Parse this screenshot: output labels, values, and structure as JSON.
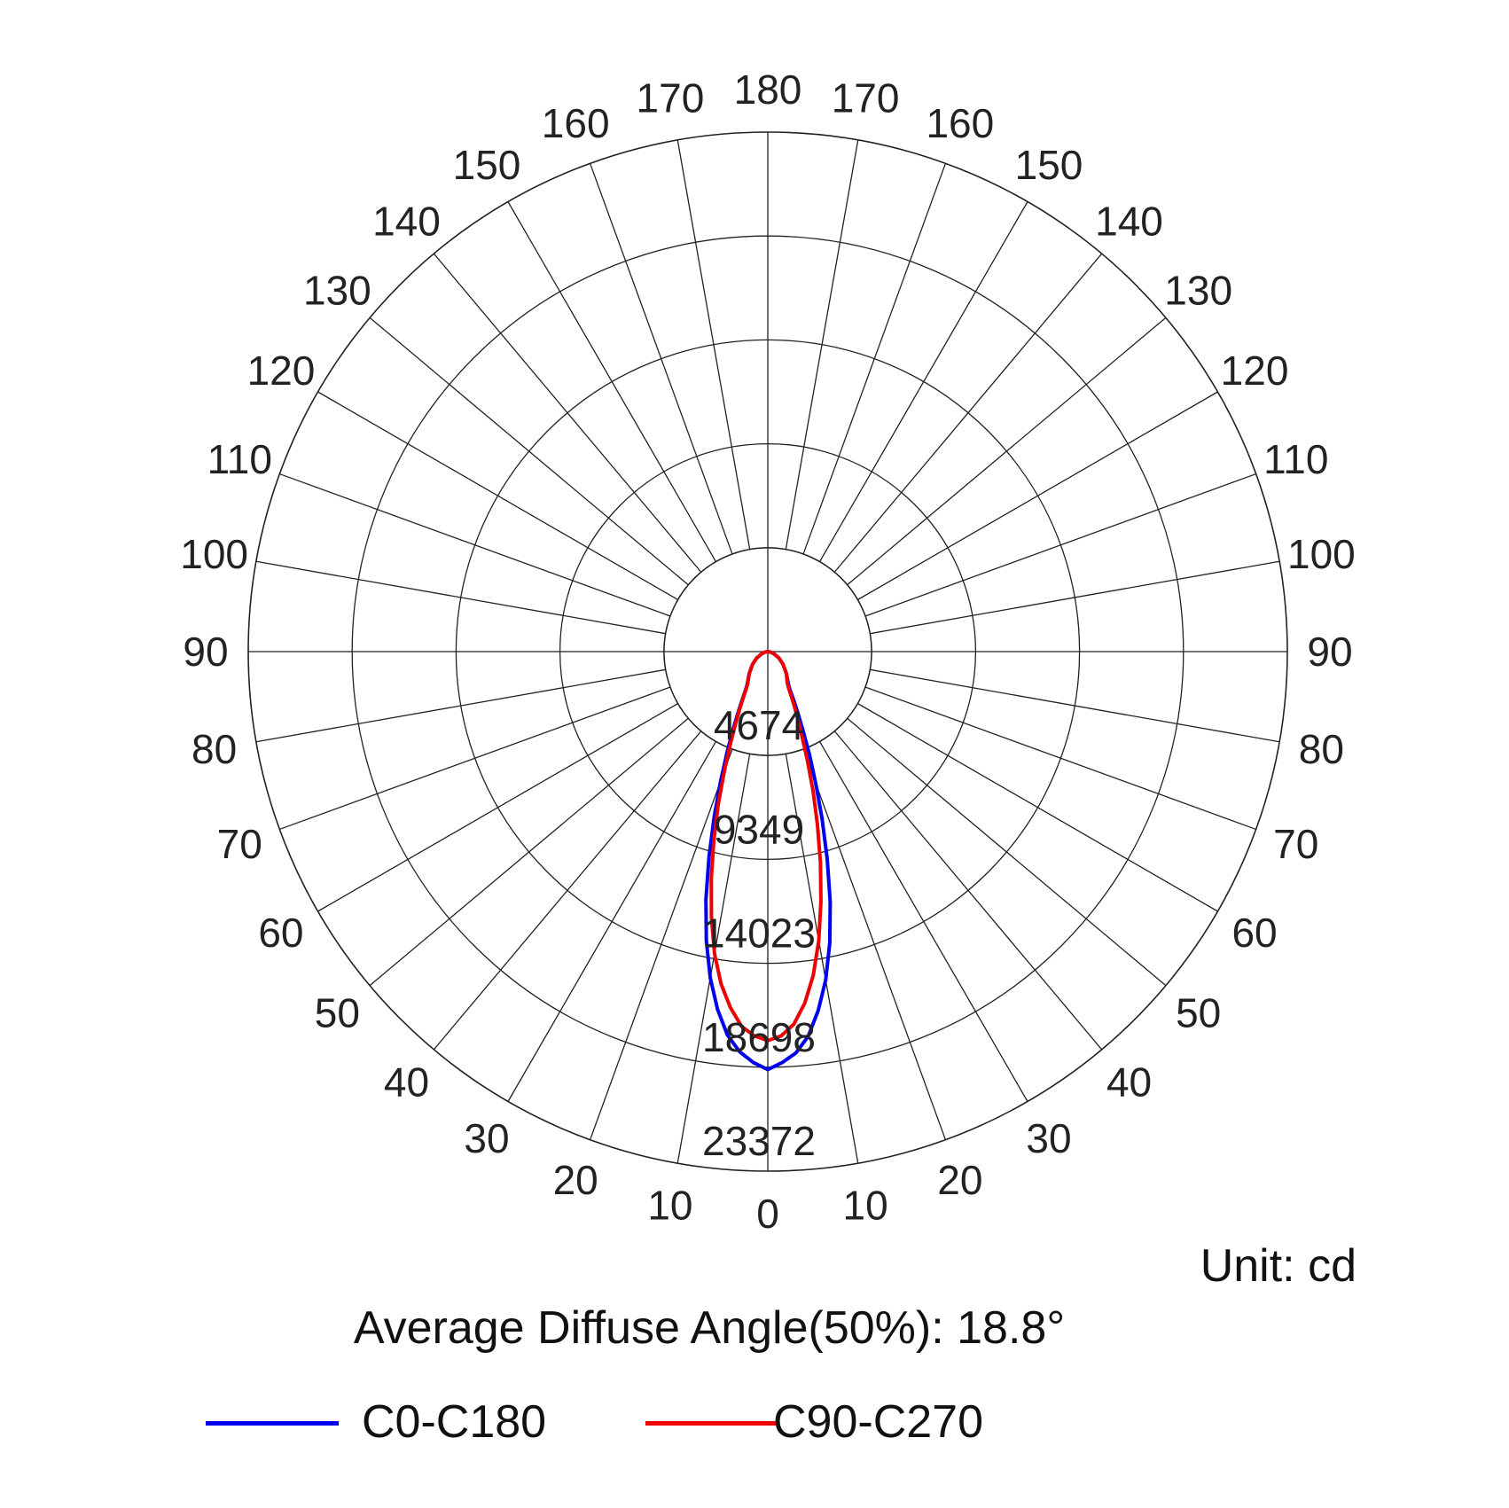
{
  "chart_data": {
    "type": "polar",
    "unit_label": "Unit: cd",
    "footer": "Average Diffuse Angle(50%): 18.8°",
    "radial_max": 23372,
    "ring_values": [
      4674,
      9349,
      14023,
      18698,
      23372
    ],
    "ring_labels": [
      "4674",
      "9349",
      "14023",
      "18698",
      "23372"
    ],
    "angle_labels_left": [
      "0",
      "10",
      "20",
      "30",
      "40",
      "50",
      "60",
      "70",
      "80",
      "90",
      "100",
      "110",
      "120",
      "130",
      "140",
      "150",
      "160",
      "170",
      "180"
    ],
    "angle_labels_right": [
      "0",
      "10",
      "20",
      "30",
      "40",
      "50",
      "60",
      "70",
      "80",
      "90",
      "100",
      "110",
      "120",
      "130",
      "140",
      "150",
      "160",
      "170"
    ],
    "series": [
      {
        "name": "C0-C180",
        "color": "#0000ee",
        "angles": [
          0,
          2,
          4,
          6,
          8,
          10,
          12,
          14,
          16,
          18,
          20,
          22,
          24,
          26,
          28,
          30,
          32,
          40,
          50,
          60,
          70,
          80,
          90
        ],
        "values_right": [
          18800,
          18500,
          18100,
          17400,
          16300,
          15000,
          13400,
          11600,
          9700,
          7900,
          6300,
          5000,
          3900,
          3100,
          2500,
          2000,
          1750,
          1300,
          900,
          580,
          300,
          120,
          0
        ],
        "values_left": [
          18800,
          18500,
          18050,
          17350,
          16250,
          14900,
          13300,
          11500,
          9600,
          7800,
          6200,
          4900,
          3850,
          3050,
          2450,
          2000,
          1750,
          1300,
          900,
          580,
          300,
          120,
          0
        ]
      },
      {
        "name": "C90-C270",
        "color": "#ee0000",
        "angles": [
          0,
          2,
          4,
          6,
          8,
          10,
          12,
          14,
          16,
          18,
          20,
          22,
          24,
          26,
          28,
          30,
          32,
          40,
          50,
          60,
          70,
          80,
          90
        ],
        "values_right": [
          17500,
          17300,
          16800,
          15900,
          14700,
          13200,
          11500,
          9800,
          8100,
          6600,
          5200,
          4100,
          3300,
          2700,
          2200,
          1850,
          1650,
          1300,
          900,
          580,
          300,
          120,
          0
        ],
        "values_left": [
          17500,
          17300,
          16900,
          16100,
          15100,
          13800,
          12200,
          10500,
          8800,
          7200,
          5700,
          4500,
          3600,
          2900,
          2350,
          1950,
          1700,
          1300,
          900,
          580,
          300,
          120,
          0
        ]
      }
    ],
    "grid": true,
    "legend_position": "bottom"
  }
}
